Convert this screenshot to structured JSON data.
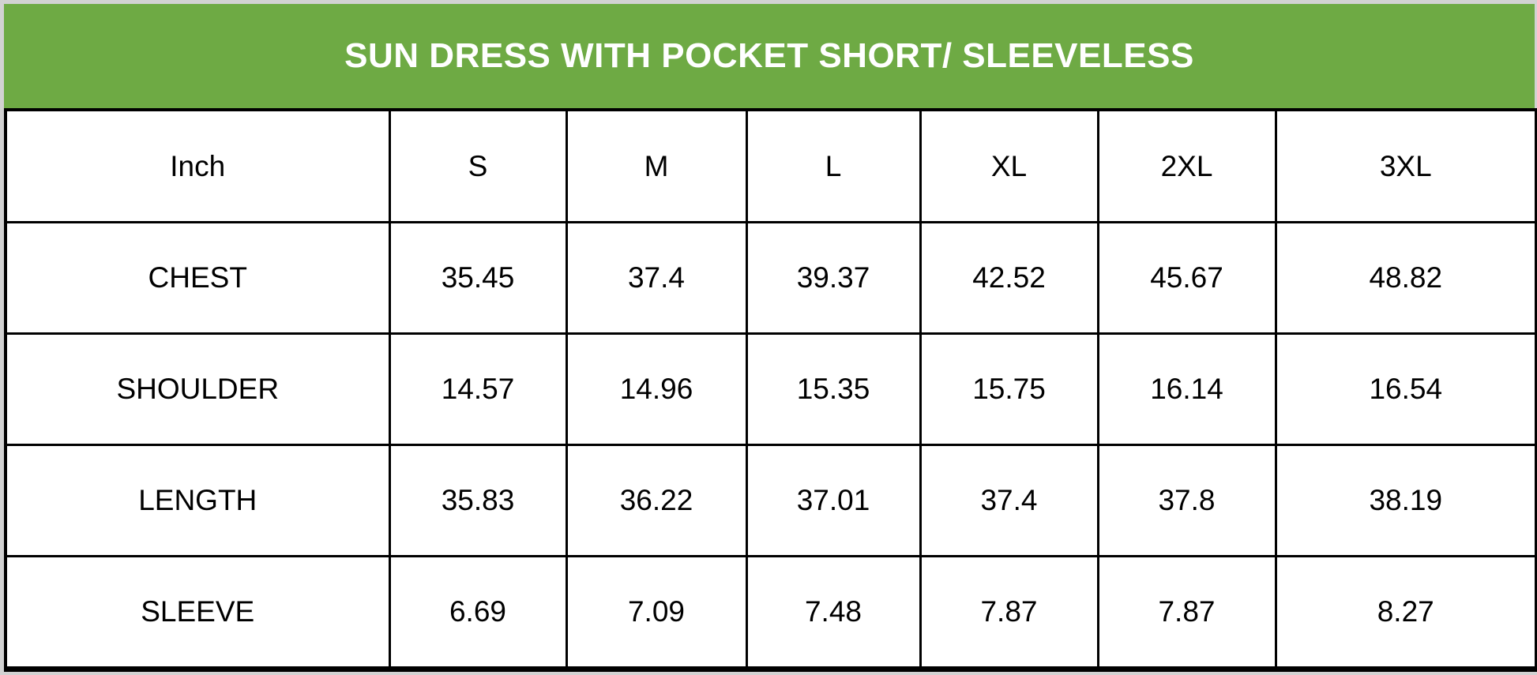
{
  "colors": {
    "header_bg": "#6EAA44",
    "header_text": "#FFFFFF",
    "page_bg": "#D2D2D2",
    "cell_bg": "#FFFFFF",
    "cell_text": "#000000",
    "border": "#000000"
  },
  "chart_data": {
    "type": "table",
    "title": "SUN DRESS WITH POCKET SHORT/ SLEEVELESS",
    "unit": "Inch",
    "columns": [
      "Inch",
      "S",
      "M",
      "L",
      "XL",
      "2XL",
      "3XL"
    ],
    "rows": [
      {
        "label": "CHEST",
        "values": [
          "35.45",
          "37.4",
          "39.37",
          "42.52",
          "45.67",
          "48.82"
        ]
      },
      {
        "label": "SHOULDER",
        "values": [
          "14.57",
          "14.96",
          "15.35",
          "15.75",
          "16.14",
          "16.54"
        ]
      },
      {
        "label": "LENGTH",
        "values": [
          "35.83",
          "36.22",
          "37.01",
          "37.4",
          "37.8",
          "38.19"
        ]
      },
      {
        "label": "SLEEVE",
        "values": [
          "6.69",
          "7.09",
          "7.48",
          "7.87",
          "7.87",
          "8.27"
        ]
      }
    ]
  }
}
